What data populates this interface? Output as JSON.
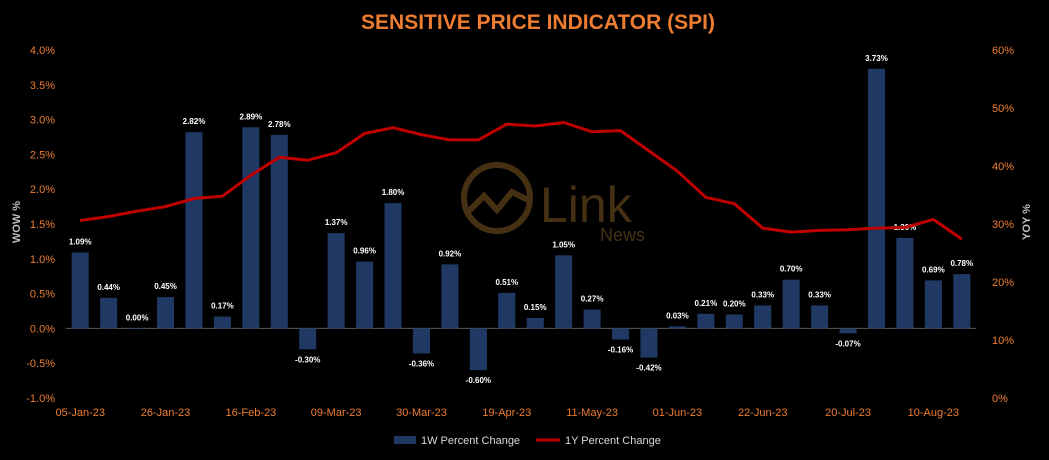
{
  "chart_data": {
    "type": "bar",
    "title": "SENSITIVE PRICE INDICATOR (SPI)",
    "ylabel": "WOW %",
    "y2label": "YOY %",
    "ylim": [
      -1.0,
      4.0
    ],
    "y_ticks": [
      "-1.0%",
      "-0.5%",
      "0.0%",
      "0.5%",
      "1.0%",
      "1.5%",
      "2.0%",
      "2.5%",
      "3.0%",
      "3.5%",
      "4.0%"
    ],
    "y2lim": [
      0,
      60
    ],
    "y2_ticks": [
      "0%",
      "10%",
      "20%",
      "30%",
      "40%",
      "50%",
      "60%"
    ],
    "x_tick_labels": [
      "05-Jan-23",
      "26-Jan-23",
      "16-Feb-23",
      "09-Mar-23",
      "30-Mar-23",
      "19-Apr-23",
      "11-May-23",
      "01-Jun-23",
      "22-Jun-23",
      "20-Jul-23",
      "10-Aug-23"
    ],
    "grid": false,
    "legend_position": "bottom",
    "series": [
      {
        "name": "1W Percent Change",
        "type": "bar",
        "axis": "left",
        "color": "#1F3864",
        "values": [
          1.09,
          0.44,
          0.0,
          0.45,
          2.82,
          0.17,
          2.89,
          2.78,
          -0.3,
          1.37,
          0.96,
          1.8,
          -0.36,
          0.92,
          -0.6,
          0.51,
          0.15,
          1.05,
          0.27,
          -0.16,
          -0.42,
          0.03,
          0.21,
          0.2,
          0.33,
          0.7,
          0.33,
          -0.07,
          3.73,
          1.3,
          0.69,
          0.78
        ],
        "labels": [
          "1.09%",
          "0.44%",
          "0.00%",
          "0.45%",
          "2.82%",
          "0.17%",
          "2.89%",
          "2.78%",
          "-0.30%",
          "1.37%",
          "0.96%",
          "1.80%",
          "-0.36%",
          "0.92%",
          "-0.60%",
          "0.51%",
          "0.15%",
          "1.05%",
          "0.27%",
          "-0.16%",
          "-0.42%",
          "0.03%",
          "0.21%",
          "0.20%",
          "0.33%",
          "0.70%",
          "0.33%",
          "-0.07%",
          "3.73%",
          "1.30%",
          "0.69%",
          "0.78%"
        ]
      },
      {
        "name": "1Y Percent Change",
        "type": "line",
        "axis": "right",
        "color": "#C00000",
        "values": [
          30.6,
          31.3,
          32.2,
          33.0,
          34.4,
          34.8,
          38.4,
          41.5,
          41.0,
          42.3,
          45.6,
          46.6,
          45.4,
          44.5,
          44.5,
          47.2,
          46.9,
          47.5,
          45.9,
          46.1,
          42.6,
          39.1,
          34.6,
          33.5,
          29.3,
          28.6,
          28.9,
          29.0,
          29.3,
          29.4,
          30.8,
          27.4
        ]
      }
    ]
  },
  "watermark": {
    "brand": "Link",
    "sub": "News"
  },
  "colors": {
    "background": "#000000",
    "title": "#ED7D31",
    "axis_text_left": "#ED7D31",
    "axis_text_right": "#ED7D31",
    "label_text": "#FFFFFF"
  }
}
